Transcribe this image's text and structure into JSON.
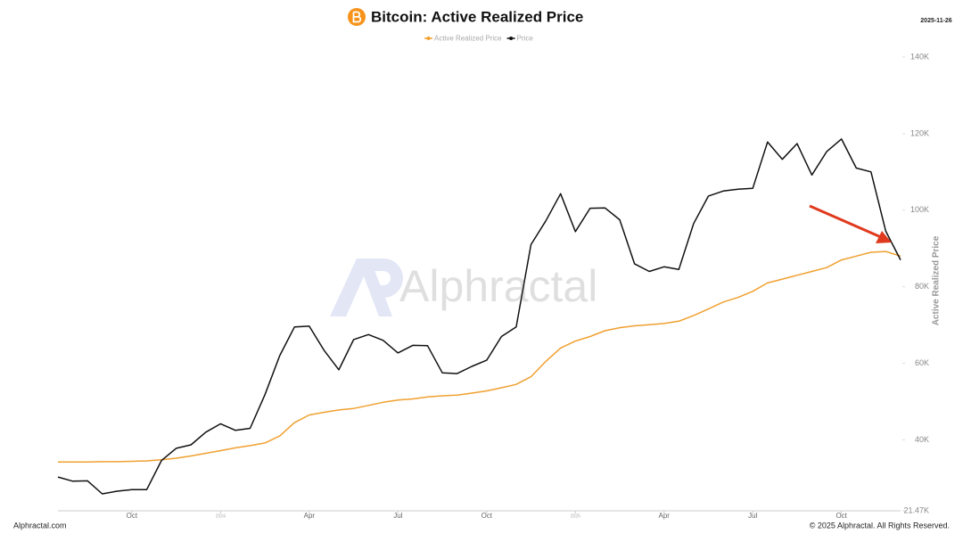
{
  "chart_data": {
    "type": "line",
    "title": "Bitcoin: Active Realized Price",
    "date": "2025-11-26",
    "y_label": "Active Realized Price",
    "watermark": "Alphractal",
    "footer_left": "Alphractal.com",
    "footer_right": "© 2025 Alphractal. All Rights Reserved.",
    "categories": [
      null,
      null,
      null,
      null,
      null,
      "Oct",
      null,
      null,
      null,
      null,
      null,
      "2024",
      null,
      null,
      null,
      null,
      null,
      "Apr",
      null,
      null,
      null,
      null,
      null,
      "Jul",
      null,
      null,
      null,
      null,
      null,
      "Oct",
      null,
      null,
      null,
      null,
      null,
      "2025",
      null,
      null,
      null,
      null,
      null,
      "Apr",
      null,
      null,
      null,
      null,
      null,
      "Jul",
      null,
      null,
      null,
      null,
      null,
      "Oct",
      null,
      null,
      null,
      null
    ],
    "series": [
      {
        "name": "Active Realized Price",
        "color": "#f0a030",
        "values": [
          34200,
          34200,
          34200,
          34300,
          34300,
          34400,
          34500,
          34800,
          35200,
          35800,
          36500,
          37200,
          37900,
          38500,
          39200,
          41000,
          44500,
          46500,
          47200,
          47800,
          48200,
          49000,
          49800,
          50400,
          50700,
          51200,
          51500,
          51700,
          52200,
          52800,
          53600,
          54500,
          56500,
          60500,
          64000,
          65800,
          67000,
          68500,
          69300,
          69800,
          70100,
          70400,
          71000,
          72500,
          74200,
          76000,
          77200,
          78800,
          81000,
          82000,
          83000,
          84000,
          85000,
          87000,
          88000,
          89000,
          89200,
          88000
        ]
      },
      {
        "name": "Price",
        "color": "#111111",
        "values": [
          30300,
          29200,
          29300,
          25900,
          26600,
          27000,
          27000,
          34600,
          37800,
          38700,
          42000,
          44200,
          42500,
          43000,
          51800,
          62000,
          69500,
          69700,
          63400,
          58300,
          66200,
          67500,
          66000,
          62700,
          64700,
          64600,
          57500,
          57300,
          59200,
          60800,
          67000,
          69500,
          91000,
          97200,
          104300,
          94400,
          100500,
          100600,
          97500,
          86000,
          84000,
          85200,
          84500,
          96500,
          103700,
          105000,
          105500,
          105700,
          117800,
          113300,
          117400,
          109200,
          115300,
          118600,
          111000,
          110000,
          94500,
          87000
        ]
      }
    ],
    "ylim": [
      21470,
      140000
    ],
    "yticks": [
      {
        "value": 21470,
        "label": "21.47K"
      },
      {
        "value": 40000,
        "label": "40K"
      },
      {
        "value": 60000,
        "label": "60K"
      },
      {
        "value": 80000,
        "label": "80K"
      },
      {
        "value": 100000,
        "label": "100K"
      },
      {
        "value": 120000,
        "label": "120K"
      },
      {
        "value": 140000,
        "label": "140K"
      }
    ]
  }
}
